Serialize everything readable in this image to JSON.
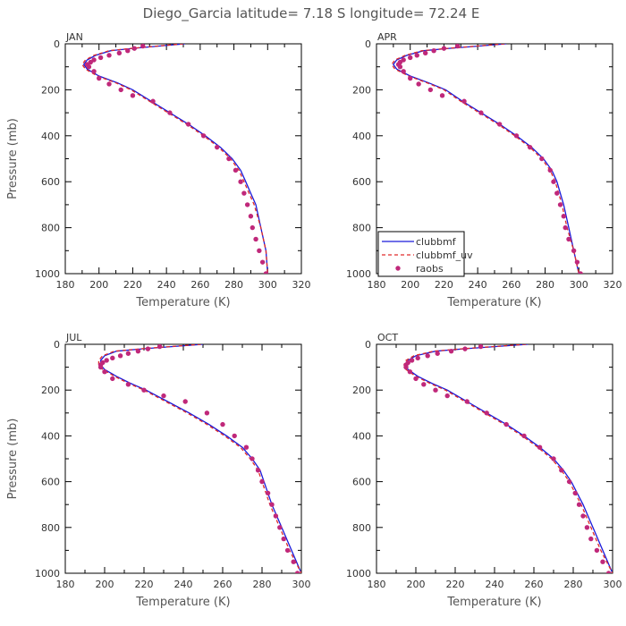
{
  "title": "Diego_Garcia   latitude= 7.18 S  longitude= 72.24 E",
  "series_colors": {
    "clubbmf": "#1a1adb",
    "clubbmf_uv": "#e02a2a",
    "raobs": "#c0287a"
  },
  "chart_data": [
    {
      "type": "line",
      "panel": "JAN",
      "xlabel": "Temperature (K)",
      "ylabel": "Pressure (mb)",
      "xlim": [
        180,
        320
      ],
      "ylim": [
        1000,
        0
      ],
      "xticks": [
        "180",
        "200",
        "220",
        "240",
        "260",
        "280",
        "300",
        "320"
      ],
      "yticks": [
        "0",
        "200",
        "400",
        "600",
        "800",
        "1000"
      ],
      "legend": false,
      "series": [
        {
          "name": "clubbmf",
          "style": "solid",
          "x": [
            251,
            235,
            220,
            207,
            198,
            193,
            191,
            193,
            200,
            211,
            220,
            231,
            242,
            253,
            263,
            272,
            279,
            284,
            287,
            290,
            293,
            296,
            299,
            300
          ],
          "y": [
            0,
            10,
            20,
            30,
            50,
            70,
            90,
            110,
            140,
            170,
            200,
            250,
            300,
            350,
            400,
            450,
            500,
            550,
            600,
            650,
            700,
            800,
            900,
            1000
          ]
        },
        {
          "name": "clubbmf_uv",
          "style": "dashed",
          "x": [
            250,
            234,
            219,
            206,
            197,
            192,
            190,
            192,
            199,
            210,
            219,
            230,
            241,
            252,
            262,
            271,
            278,
            283,
            286,
            289,
            292,
            296,
            299,
            300
          ],
          "y": [
            0,
            10,
            20,
            30,
            50,
            70,
            90,
            110,
            140,
            170,
            200,
            250,
            300,
            350,
            400,
            450,
            500,
            550,
            600,
            650,
            700,
            800,
            900,
            1000
          ]
        },
        {
          "name": "raobs",
          "style": "points",
          "x": [
            226,
            221,
            217,
            212,
            206,
            201,
            197,
            195,
            193,
            194,
            197,
            200,
            206,
            213,
            220,
            232,
            242,
            253,
            262,
            270,
            277,
            281,
            284,
            286,
            288,
            290,
            291,
            293,
            295,
            297,
            299
          ],
          "y": [
            10,
            20,
            30,
            40,
            50,
            60,
            70,
            80,
            90,
            100,
            120,
            150,
            175,
            200,
            225,
            250,
            300,
            350,
            400,
            450,
            500,
            550,
            600,
            650,
            700,
            750,
            800,
            850,
            900,
            950,
            1000
          ]
        }
      ]
    },
    {
      "type": "line",
      "panel": "APR",
      "xlabel": "Temperature (K)",
      "ylabel": "",
      "xlim": [
        180,
        320
      ],
      "ylim": [
        1000,
        0
      ],
      "xticks": [
        "180",
        "200",
        "220",
        "240",
        "260",
        "280",
        "300",
        "320"
      ],
      "yticks": [
        "0",
        "200",
        "400",
        "600",
        "800",
        "1000"
      ],
      "legend": true,
      "legend_position": "bottom-left",
      "series": [
        {
          "name": "clubbmf",
          "style": "solid",
          "x": [
            257,
            240,
            223,
            208,
            198,
            192,
            190,
            192,
            200,
            211,
            221,
            231,
            242,
            253,
            263,
            272,
            279,
            284,
            287,
            289,
            291,
            294,
            297,
            300
          ],
          "y": [
            0,
            10,
            20,
            30,
            50,
            70,
            90,
            110,
            140,
            170,
            200,
            250,
            300,
            350,
            400,
            450,
            500,
            550,
            600,
            650,
            700,
            800,
            900,
            1000
          ]
        },
        {
          "name": "clubbmf_uv",
          "style": "dashed",
          "x": [
            256,
            239,
            222,
            207,
            197,
            191,
            189,
            191,
            199,
            210,
            220,
            230,
            241,
            252,
            262,
            271,
            278,
            283,
            286,
            288,
            290,
            293,
            297,
            300
          ],
          "y": [
            0,
            10,
            20,
            30,
            50,
            70,
            90,
            110,
            140,
            170,
            200,
            250,
            300,
            350,
            400,
            450,
            500,
            550,
            600,
            650,
            700,
            800,
            900,
            1000
          ]
        },
        {
          "name": "raobs",
          "style": "points",
          "x": [
            228,
            220,
            214,
            209,
            204,
            200,
            196,
            194,
            193,
            194,
            196,
            200,
            205,
            212,
            219,
            232,
            242,
            253,
            263,
            271,
            278,
            283,
            285,
            287,
            289,
            291,
            292,
            294,
            297,
            299,
            301
          ],
          "y": [
            10,
            20,
            30,
            40,
            50,
            60,
            70,
            80,
            90,
            100,
            120,
            150,
            175,
            200,
            225,
            250,
            300,
            350,
            400,
            450,
            500,
            550,
            600,
            650,
            700,
            750,
            800,
            850,
            900,
            950,
            1000
          ]
        }
      ]
    },
    {
      "type": "line",
      "panel": "JUL",
      "xlabel": "Temperature (K)",
      "ylabel": "Pressure (mb)",
      "xlim": [
        180,
        300
      ],
      "ylim": [
        1000,
        0
      ],
      "xticks": [
        "180",
        "200",
        "220",
        "240",
        "260",
        "280",
        "300"
      ],
      "yticks": [
        "0",
        "200",
        "400",
        "600",
        "800",
        "1000"
      ],
      "legend": false,
      "series": [
        {
          "name": "clubbmf",
          "style": "solid",
          "x": [
            250,
            234,
            219,
            206,
            200,
            198,
            198,
            200,
            206,
            213,
            221,
            232,
            243,
            253,
            262,
            270,
            275,
            279,
            281,
            283,
            285,
            290,
            295,
            300
          ],
          "y": [
            0,
            10,
            20,
            30,
            50,
            70,
            90,
            110,
            140,
            170,
            200,
            250,
            300,
            350,
            400,
            450,
            500,
            550,
            600,
            650,
            700,
            800,
            900,
            1000
          ]
        },
        {
          "name": "clubbmf_uv",
          "style": "dashed",
          "x": [
            249,
            233,
            218,
            205,
            199,
            197,
            197,
            199,
            205,
            212,
            220,
            231,
            242,
            252,
            261,
            269,
            274,
            278,
            280,
            282,
            284,
            289,
            294,
            300
          ],
          "y": [
            0,
            10,
            20,
            30,
            50,
            70,
            90,
            110,
            140,
            170,
            200,
            250,
            300,
            350,
            400,
            450,
            500,
            550,
            600,
            650,
            700,
            800,
            900,
            1000
          ]
        },
        {
          "name": "raobs",
          "style": "points",
          "x": [
            228,
            222,
            217,
            212,
            208,
            204,
            201,
            199,
            198,
            198,
            200,
            204,
            212,
            220,
            230,
            241,
            252,
            260,
            266,
            272,
            275,
            278,
            280,
            283,
            285,
            287,
            289,
            291,
            293,
            296,
            298
          ],
          "y": [
            10,
            20,
            30,
            40,
            50,
            60,
            70,
            80,
            90,
            100,
            120,
            150,
            175,
            200,
            225,
            250,
            300,
            350,
            400,
            450,
            500,
            550,
            600,
            650,
            700,
            750,
            800,
            850,
            900,
            950,
            1000
          ]
        }
      ]
    },
    {
      "type": "line",
      "panel": "OCT",
      "xlabel": "Temperature (K)",
      "ylabel": "",
      "xlim": [
        180,
        300
      ],
      "ylim": [
        1000,
        0
      ],
      "xticks": [
        "180",
        "200",
        "220",
        "240",
        "260",
        "280",
        "300"
      ],
      "yticks": [
        "0",
        "200",
        "400",
        "600",
        "800",
        "1000"
      ],
      "legend": false,
      "series": [
        {
          "name": "clubbmf",
          "style": "solid",
          "x": [
            257,
            240,
            224,
            210,
            200,
            196,
            195,
            196,
            201,
            208,
            216,
            226,
            236,
            246,
            255,
            263,
            270,
            275,
            279,
            282,
            285,
            290,
            295,
            300
          ],
          "y": [
            0,
            10,
            20,
            30,
            50,
            70,
            90,
            110,
            140,
            170,
            200,
            250,
            300,
            350,
            400,
            450,
            500,
            550,
            600,
            650,
            700,
            800,
            900,
            1000
          ]
        },
        {
          "name": "clubbmf_uv",
          "style": "dashed",
          "x": [
            256,
            239,
            223,
            209,
            199,
            195,
            194,
            195,
            200,
            207,
            215,
            225,
            235,
            245,
            254,
            262,
            269,
            274,
            278,
            281,
            284,
            289,
            294,
            300
          ],
          "y": [
            0,
            10,
            20,
            30,
            50,
            70,
            90,
            110,
            140,
            170,
            200,
            250,
            300,
            350,
            400,
            450,
            500,
            550,
            600,
            650,
            700,
            800,
            900,
            1000
          ]
        },
        {
          "name": "raobs",
          "style": "points",
          "x": [
            233,
            225,
            218,
            211,
            206,
            201,
            198,
            196,
            195,
            195,
            197,
            200,
            204,
            210,
            216,
            226,
            236,
            246,
            255,
            263,
            270,
            274,
            278,
            281,
            283,
            285,
            287,
            289,
            292,
            295,
            298
          ],
          "y": [
            10,
            20,
            30,
            40,
            50,
            60,
            70,
            80,
            90,
            100,
            120,
            150,
            175,
            200,
            225,
            250,
            300,
            350,
            400,
            450,
            500,
            550,
            600,
            650,
            700,
            750,
            800,
            850,
            900,
            950,
            1000
          ]
        }
      ]
    }
  ]
}
